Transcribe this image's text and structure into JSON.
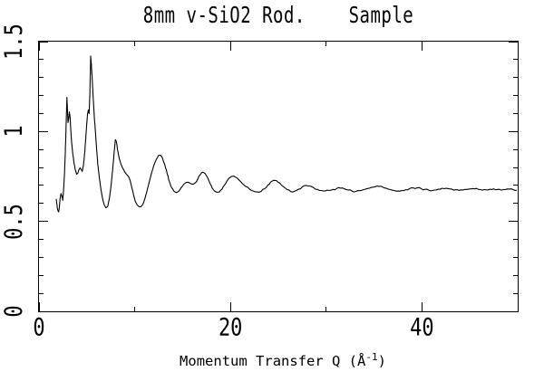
{
  "page": {
    "background": "#ffffff",
    "foreground": "#000000"
  },
  "chart_data": {
    "type": "line",
    "title": "8mm v-SiO2 Rod.    Sample",
    "xlabel": "Momentum Transfer Q (Å-1)",
    "xlabel_main": "Momentum Transfer Q (Å",
    "xlabel_sup": "-1",
    "xlabel_close": ")",
    "ylabel": "",
    "xlim": [
      0,
      50
    ],
    "ylim": [
      0,
      1.5
    ],
    "grid": false,
    "legend": null,
    "line_color": "#000000",
    "x_axis": {
      "major": [
        0,
        20,
        40
      ],
      "labels": [
        "0",
        "20",
        "40"
      ],
      "minor": [
        10,
        30,
        50
      ]
    },
    "y_axis": {
      "major": [
        0,
        0.5,
        1,
        1.5
      ],
      "labels": [
        "0",
        "0.5",
        "1",
        "1.5"
      ],
      "minor": [
        0.1,
        0.2,
        0.3,
        0.4,
        0.6,
        0.7,
        0.8,
        0.9,
        1.1,
        1.2,
        1.3,
        1.4
      ]
    },
    "points": [
      [
        1.8,
        0.625
      ],
      [
        1.88,
        0.59
      ],
      [
        1.95,
        0.565
      ],
      [
        2.05,
        0.553
      ],
      [
        2.12,
        0.575
      ],
      [
        2.2,
        0.625
      ],
      [
        2.3,
        0.655
      ],
      [
        2.4,
        0.64
      ],
      [
        2.48,
        0.617
      ],
      [
        2.55,
        0.66
      ],
      [
        2.65,
        0.75
      ],
      [
        2.72,
        0.84
      ],
      [
        2.8,
        0.97
      ],
      [
        2.86,
        1.09
      ],
      [
        2.92,
        1.19
      ],
      [
        2.97,
        1.12
      ],
      [
        3.03,
        1.05
      ],
      [
        3.1,
        1.07
      ],
      [
        3.17,
        1.11
      ],
      [
        3.25,
        1.08
      ],
      [
        3.33,
        1.0
      ],
      [
        3.42,
        0.935
      ],
      [
        3.52,
        0.88
      ],
      [
        3.65,
        0.83
      ],
      [
        3.78,
        0.79
      ],
      [
        3.93,
        0.762
      ],
      [
        4.05,
        0.768
      ],
      [
        4.18,
        0.788
      ],
      [
        4.3,
        0.798
      ],
      [
        4.42,
        0.788
      ],
      [
        4.52,
        0.778
      ],
      [
        4.65,
        0.815
      ],
      [
        4.78,
        0.885
      ],
      [
        4.9,
        0.975
      ],
      [
        5.0,
        1.05
      ],
      [
        5.08,
        1.1
      ],
      [
        5.16,
        1.12
      ],
      [
        5.24,
        1.1
      ],
      [
        5.32,
        1.22
      ],
      [
        5.4,
        1.42
      ],
      [
        5.47,
        1.37
      ],
      [
        5.55,
        1.3
      ],
      [
        5.66,
        1.19
      ],
      [
        5.78,
        1.08
      ],
      [
        5.9,
        0.995
      ],
      [
        6.02,
        0.9
      ],
      [
        6.15,
        0.815
      ],
      [
        6.3,
        0.745
      ],
      [
        6.48,
        0.675
      ],
      [
        6.65,
        0.625
      ],
      [
        6.82,
        0.592
      ],
      [
        7.0,
        0.576
      ],
      [
        7.18,
        0.583
      ],
      [
        7.35,
        0.625
      ],
      [
        7.52,
        0.695
      ],
      [
        7.7,
        0.79
      ],
      [
        7.86,
        0.89
      ],
      [
        7.98,
        0.955
      ],
      [
        8.08,
        0.945
      ],
      [
        8.22,
        0.895
      ],
      [
        8.38,
        0.85
      ],
      [
        8.55,
        0.82
      ],
      [
        8.75,
        0.795
      ],
      [
        8.95,
        0.775
      ],
      [
        9.15,
        0.762
      ],
      [
        9.35,
        0.75
      ],
      [
        9.52,
        0.728
      ],
      [
        9.7,
        0.688
      ],
      [
        9.88,
        0.648
      ],
      [
        10.05,
        0.613
      ],
      [
        10.25,
        0.592
      ],
      [
        10.45,
        0.582
      ],
      [
        10.65,
        0.582
      ],
      [
        10.85,
        0.595
      ],
      [
        11.05,
        0.625
      ],
      [
        11.25,
        0.662
      ],
      [
        11.5,
        0.715
      ],
      [
        11.75,
        0.768
      ],
      [
        12.0,
        0.812
      ],
      [
        12.25,
        0.845
      ],
      [
        12.5,
        0.868
      ],
      [
        12.7,
        0.868
      ],
      [
        12.9,
        0.852
      ],
      [
        13.1,
        0.822
      ],
      [
        13.35,
        0.775
      ],
      [
        13.6,
        0.725
      ],
      [
        13.85,
        0.688
      ],
      [
        14.1,
        0.668
      ],
      [
        14.35,
        0.66
      ],
      [
        14.6,
        0.668
      ],
      [
        14.85,
        0.688
      ],
      [
        15.1,
        0.705
      ],
      [
        15.35,
        0.717
      ],
      [
        15.6,
        0.718
      ],
      [
        15.85,
        0.71
      ],
      [
        16.1,
        0.706
      ],
      [
        16.35,
        0.716
      ],
      [
        16.6,
        0.738
      ],
      [
        16.85,
        0.76
      ],
      [
        17.1,
        0.774
      ],
      [
        17.35,
        0.767
      ],
      [
        17.6,
        0.744
      ],
      [
        17.85,
        0.712
      ],
      [
        18.1,
        0.685
      ],
      [
        18.35,
        0.668
      ],
      [
        18.6,
        0.662
      ],
      [
        18.85,
        0.664
      ],
      [
        19.1,
        0.678
      ],
      [
        19.35,
        0.7
      ],
      [
        19.6,
        0.722
      ],
      [
        19.85,
        0.74
      ],
      [
        20.1,
        0.75
      ],
      [
        20.35,
        0.752
      ],
      [
        20.6,
        0.744
      ],
      [
        20.9,
        0.73
      ],
      [
        21.25,
        0.71
      ],
      [
        21.6,
        0.694
      ],
      [
        22.0,
        0.679
      ],
      [
        22.4,
        0.669
      ],
      [
        22.8,
        0.664
      ],
      [
        23.2,
        0.667
      ],
      [
        23.55,
        0.681
      ],
      [
        23.9,
        0.702
      ],
      [
        24.2,
        0.719
      ],
      [
        24.5,
        0.729
      ],
      [
        24.8,
        0.727
      ],
      [
        25.15,
        0.713
      ],
      [
        25.5,
        0.694
      ],
      [
        25.9,
        0.677
      ],
      [
        26.3,
        0.666
      ],
      [
        26.7,
        0.668
      ],
      [
        27.1,
        0.679
      ],
      [
        27.5,
        0.692
      ],
      [
        27.9,
        0.7
      ],
      [
        28.3,
        0.697
      ],
      [
        28.7,
        0.687
      ],
      [
        29.1,
        0.678
      ],
      [
        29.5,
        0.672
      ],
      [
        29.9,
        0.669
      ],
      [
        30.3,
        0.672
      ],
      [
        30.7,
        0.678
      ],
      [
        31.1,
        0.683
      ],
      [
        31.5,
        0.685
      ],
      [
        31.9,
        0.681
      ],
      [
        32.3,
        0.675
      ],
      [
        32.7,
        0.669
      ],
      [
        33.1,
        0.667
      ],
      [
        33.5,
        0.671
      ],
      [
        33.9,
        0.677
      ],
      [
        34.3,
        0.683
      ],
      [
        34.7,
        0.689
      ],
      [
        35.1,
        0.693
      ],
      [
        35.5,
        0.695
      ],
      [
        35.9,
        0.691
      ],
      [
        36.3,
        0.684
      ],
      [
        36.7,
        0.677
      ],
      [
        37.1,
        0.672
      ],
      [
        37.5,
        0.669
      ],
      [
        37.9,
        0.672
      ],
      [
        38.3,
        0.677
      ],
      [
        38.7,
        0.682
      ],
      [
        39.1,
        0.686
      ],
      [
        39.5,
        0.687
      ],
      [
        39.9,
        0.683
      ],
      [
        40.3,
        0.678
      ],
      [
        40.7,
        0.674
      ],
      [
        41.1,
        0.672
      ],
      [
        41.5,
        0.675
      ],
      [
        41.9,
        0.679
      ],
      [
        42.3,
        0.682
      ],
      [
        42.7,
        0.683
      ],
      [
        43.1,
        0.68
      ],
      [
        43.5,
        0.676
      ],
      [
        43.9,
        0.673
      ],
      [
        44.3,
        0.675
      ],
      [
        44.7,
        0.678
      ],
      [
        45.1,
        0.681
      ],
      [
        45.5,
        0.681
      ],
      [
        45.9,
        0.678
      ],
      [
        46.3,
        0.674
      ],
      [
        46.7,
        0.676
      ],
      [
        47.1,
        0.679
      ],
      [
        47.5,
        0.681
      ],
      [
        47.9,
        0.678
      ],
      [
        48.3,
        0.674
      ],
      [
        48.7,
        0.677
      ],
      [
        49.1,
        0.68
      ],
      [
        49.5,
        0.678
      ],
      [
        49.9,
        0.673
      ]
    ]
  }
}
